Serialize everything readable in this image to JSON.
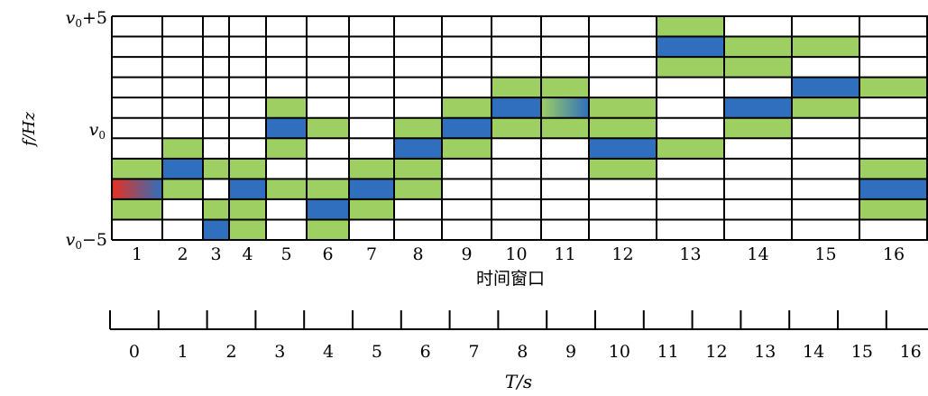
{
  "chart_data": {
    "type": "heatmap",
    "ylabel": "f/Hz",
    "y_ticks": [
      {
        "label": "v0+5",
        "row": 0
      },
      {
        "label": "v0",
        "row": 5
      },
      {
        "label": "v0−5",
        "row": 10
      }
    ],
    "rows": 11,
    "window_label": "时间窗口",
    "window_ticks": [
      "1",
      "2",
      "3",
      "4",
      "5",
      "6",
      "7",
      "8",
      "9",
      "10",
      "11",
      "12",
      "13",
      "14",
      "15",
      "16"
    ],
    "window_cells": [
      {
        "window": 1,
        "green": [
          7,
          9
        ],
        "blue": [],
        "gradient": [
          8
        ]
      },
      {
        "window": 2,
        "green": [
          6,
          8
        ],
        "blue": [
          7
        ],
        "gradient": []
      },
      {
        "window": 3,
        "green": [
          7,
          9
        ],
        "blue": [
          10
        ],
        "gradient": []
      },
      {
        "window": 4,
        "green": [
          7,
          9,
          10
        ],
        "blue": [
          8
        ],
        "gradient": []
      },
      {
        "window": 5,
        "green": [
          4,
          6,
          8
        ],
        "blue": [
          5
        ],
        "gradient": []
      },
      {
        "window": 6,
        "green": [
          5,
          8,
          10
        ],
        "blue": [
          9
        ],
        "gradient": []
      },
      {
        "window": 7,
        "green": [
          7,
          9
        ],
        "blue": [
          8
        ],
        "gradient": []
      },
      {
        "window": 8,
        "green": [
          5,
          7,
          8
        ],
        "blue": [
          6
        ],
        "gradient": []
      },
      {
        "window": 9,
        "green": [
          4,
          6
        ],
        "blue": [
          5
        ],
        "gradient": []
      },
      {
        "window": 10,
        "green": [
          3,
          5
        ],
        "blue": [
          4
        ],
        "gradient": []
      },
      {
        "window": 11,
        "green": [
          3,
          5
        ],
        "blue": [],
        "gradient": [
          4
        ]
      },
      {
        "window": 12,
        "green": [
          4,
          5,
          7
        ],
        "blue": [
          6
        ],
        "gradient": []
      },
      {
        "window": 13,
        "green": [
          0,
          2,
          6
        ],
        "blue": [
          1
        ],
        "gradient": []
      },
      {
        "window": 14,
        "green": [
          1,
          2,
          5
        ],
        "blue": [
          4
        ],
        "gradient": []
      },
      {
        "window": 15,
        "green": [
          1,
          4
        ],
        "blue": [
          3
        ],
        "gradient": []
      },
      {
        "window": 16,
        "green": [
          3,
          7,
          9
        ],
        "blue": [
          8
        ],
        "gradient": []
      }
    ],
    "time_label": "T/s",
    "time_ticks": [
      "0",
      "1",
      "2",
      "3",
      "4",
      "5",
      "6",
      "7",
      "8",
      "9",
      "10",
      "11",
      "12",
      "13",
      "14",
      "15",
      "16"
    ],
    "colors": {
      "green": "#9ecf63",
      "blue": "#2f6fbd",
      "gradient_red": "#e83020",
      "gradient_blue": "#2f6fbd",
      "gradient_green": "#9ecf63",
      "grid": "#000000"
    }
  }
}
